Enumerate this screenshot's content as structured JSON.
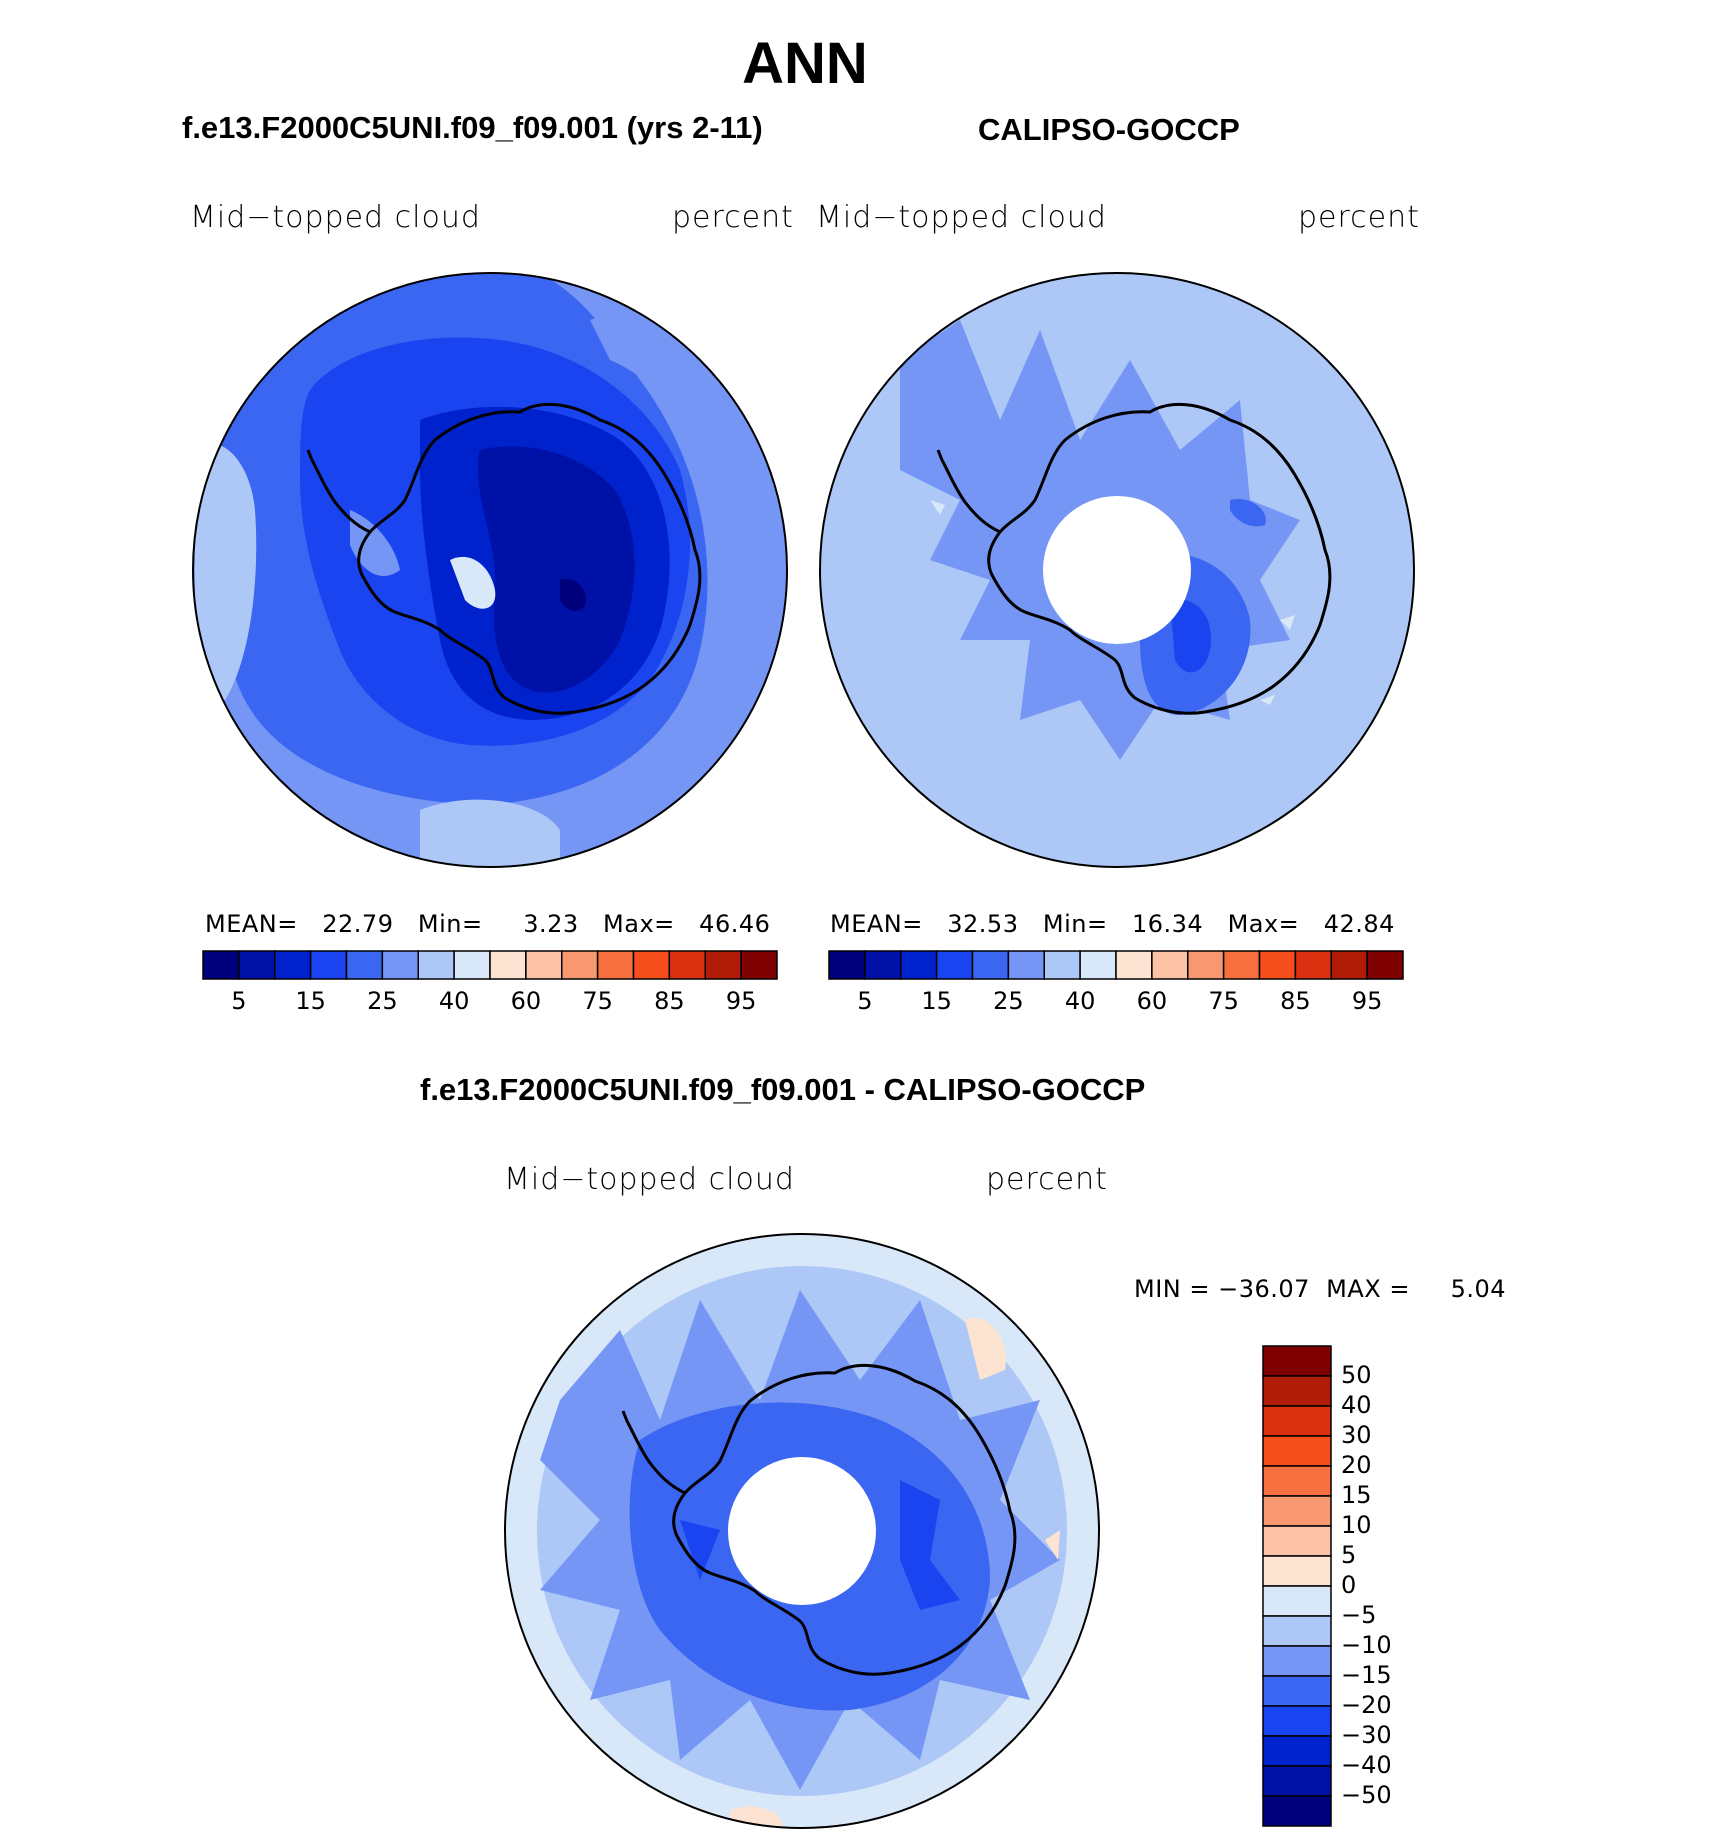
{
  "page": {
    "title": "ANN"
  },
  "panels": [
    {
      "case_title": "f.e13.F2000C5UNI.f09_f09.001 (yrs 2-11)",
      "left_label": "Mid−topped cloud",
      "right_label": "percent",
      "stats": {
        "mean_label": "MEAN=",
        "mean": "22.79",
        "min_label": "Min=",
        "min": "3.23",
        "max_label": "Max=",
        "max": "46.46"
      }
    },
    {
      "case_title": "CALIPSO-GOCCP",
      "left_label": "Mid−topped cloud",
      "right_label": "percent",
      "stats": {
        "mean_label": "MEAN=",
        "mean": "32.53",
        "min_label": "Min=",
        "min": "16.34",
        "max_label": "Max=",
        "max": "42.84"
      }
    }
  ],
  "diff_panel": {
    "title": "f.e13.F2000C5UNI.f09_f09.001 - CALIPSO-GOCCP",
    "left_label": "Mid−topped cloud",
    "right_label": "percent",
    "minmax_text": "MIN = −36.07  MAX =     5.04"
  },
  "colorbar_main": {
    "colors": [
      "#00007a",
      "#0011a8",
      "#0022cc",
      "#1a44f0",
      "#3a66f2",
      "#7596f5",
      "#adc8f7",
      "#d8e8f9",
      "#fde3d1",
      "#fbc2a6",
      "#f89870",
      "#f97040",
      "#f54d1b",
      "#dc3110",
      "#b01c07",
      "#7f0000"
    ],
    "tick_labels": [
      "5",
      "15",
      "25",
      "40",
      "60",
      "75",
      "85",
      "95"
    ]
  },
  "colorbar_diff": {
    "colors_top_to_bottom": [
      "#7f0000",
      "#b01c07",
      "#dc3110",
      "#f54d1b",
      "#f97040",
      "#f89870",
      "#fbc2a6",
      "#fde3d1",
      "#d8e8f9",
      "#adc8f7",
      "#7596f5",
      "#3a66f2",
      "#1a44f0",
      "#0022cc",
      "#0011a8",
      "#00007a"
    ],
    "tick_labels": [
      "50",
      "40",
      "30",
      "20",
      "15",
      "10",
      "5",
      "0",
      "−5",
      "−10",
      "−15",
      "−20",
      "−30",
      "−40",
      "−50"
    ]
  },
  "chart_data": {
    "type": "map",
    "projection": "south polar stereographic",
    "season": "ANN",
    "variable": "Mid-topped cloud",
    "units": "percent",
    "maps": [
      {
        "name": "f.e13.F2000C5UNI.f09_f09.001 (yrs 2-11)",
        "mean": 22.79,
        "min": 3.23,
        "max": 46.46,
        "contour_levels": [
          5,
          10,
          15,
          20,
          25,
          30,
          40,
          50,
          60,
          70,
          75,
          80,
          85,
          90,
          95
        ]
      },
      {
        "name": "CALIPSO-GOCCP",
        "mean": 32.53,
        "min": 16.34,
        "max": 42.84,
        "contour_levels": [
          5,
          10,
          15,
          20,
          25,
          30,
          40,
          50,
          60,
          70,
          75,
          80,
          85,
          90,
          95
        ]
      },
      {
        "name": "f.e13.F2000C5UNI.f09_f09.001 - CALIPSO-GOCCP",
        "min": -36.07,
        "max": 5.04,
        "contour_levels": [
          -50,
          -40,
          -30,
          -20,
          -15,
          -10,
          -5,
          0,
          5,
          10,
          15,
          20,
          30,
          40,
          50
        ]
      }
    ]
  }
}
